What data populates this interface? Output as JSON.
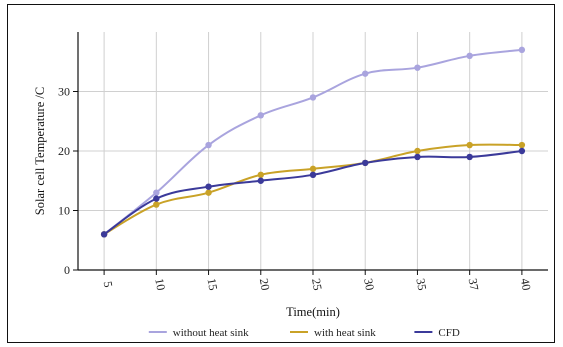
{
  "chart_data": {
    "type": "line",
    "x": [
      "5",
      "10",
      "15",
      "20",
      "25",
      "30",
      "35",
      "37",
      "40"
    ],
    "xlabel": "Time(min)",
    "ylabel": "Solar cell Temperature /C",
    "ylim": [
      0,
      40
    ],
    "yticks": [
      0,
      10,
      20,
      30
    ],
    "grid": true,
    "legend_position": "bottom",
    "series": [
      {
        "name": "without heat sink",
        "color": "#a9a4de",
        "values": [
          6,
          13,
          21,
          26,
          29,
          33,
          34,
          36,
          37
        ]
      },
      {
        "name": "with heat sink",
        "color": "#c9a227",
        "values": [
          6,
          11,
          13,
          16,
          17,
          18,
          20,
          21,
          21
        ]
      },
      {
        "name": "CFD",
        "color": "#3b3a9a",
        "values": [
          6,
          12,
          14,
          15,
          16,
          18,
          19,
          19,
          20
        ]
      }
    ]
  }
}
